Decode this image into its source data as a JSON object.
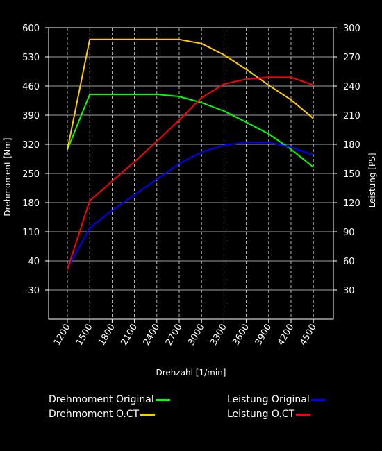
{
  "chart_data": {
    "type": "line",
    "xlabel": "Drehzahl [1/min]",
    "ylabel_left": "Drehmoment [Nm]",
    "ylabel_right": "Leistung [PS]",
    "x": [
      1200,
      1500,
      1800,
      2100,
      2400,
      2700,
      3000,
      3300,
      3600,
      3900,
      4200,
      4500
    ],
    "x_tick_labels": [
      "1200",
      "1500",
      "1800",
      "2100",
      "2400",
      "2700",
      "3000",
      "3300",
      "3600",
      "3900",
      "4200",
      "4500"
    ],
    "y_left_ticks": [
      600,
      530,
      460,
      390,
      320,
      250,
      180,
      110,
      40,
      -30
    ],
    "y_right_ticks": [
      300,
      270,
      240,
      210,
      180,
      150,
      120,
      90,
      60,
      30
    ],
    "ylim_left": [
      -100,
      600
    ],
    "ylim_right": [
      0,
      300
    ],
    "grid": true,
    "legend_position": "bottom",
    "series": [
      {
        "name": "Drehmoment Original",
        "axis": "left",
        "color": "#00ff00",
        "values": [
          307,
          440,
          440,
          440,
          440,
          435,
          420,
          400,
          373,
          345,
          308,
          265
        ]
      },
      {
        "name": "Drehmoment O.CT",
        "axis": "left",
        "color": "#ffcc00",
        "values": [
          307,
          572,
          572,
          572,
          572,
          572,
          562,
          535,
          500,
          462,
          427,
          382
        ]
      },
      {
        "name": "Leistung Original",
        "axis": "right",
        "color": "#0000ff",
        "values": [
          52,
          94,
          112,
          128,
          144,
          160,
          172,
          179,
          182,
          182,
          177,
          169
        ]
      },
      {
        "name": "Leistung O.CT",
        "axis": "right",
        "color": "#ff0000",
        "values": [
          51,
          122,
          142,
          162,
          183,
          205,
          228,
          242,
          247,
          249,
          249,
          241
        ]
      }
    ]
  }
}
